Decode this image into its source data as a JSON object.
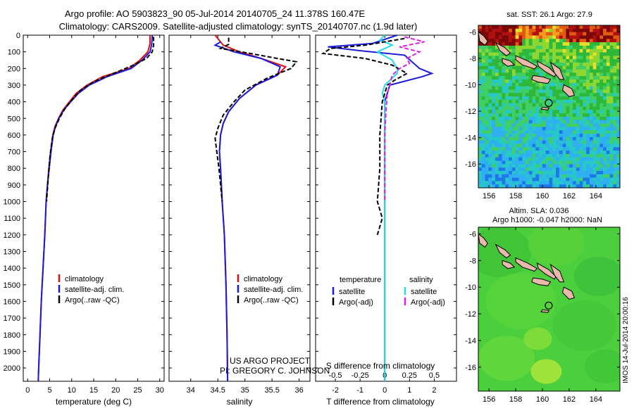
{
  "title": {
    "line1": "Argo profile: AO 5903823_90 05-Jul-2014 20140705_24 11.378S 160.47E",
    "line2": "Climatology: CARS2009. Satellite-adjusted climatology: synTS_20140707.nc (1.9d later)"
  },
  "credit": {
    "line1": "US ARGO PROJECT",
    "line2": "PI: GREGORY C. JOHNSON"
  },
  "side_stamp": "IMOS 14-Jul-2014 20:00:16",
  "colors": {
    "climatology": "#dd1111",
    "satellite": "#1a1adb",
    "argo": "#000000",
    "salinity_satellite": "#22dde8",
    "salinity_argo": "#e020e0"
  },
  "chart_data": [
    {
      "id": "temperature",
      "type": "line",
      "xlabel": "temperature (deg C)",
      "xlim": [
        -1,
        31
      ],
      "xticks": [
        0,
        5,
        10,
        15,
        20,
        25,
        30
      ],
      "ylim": [
        2080,
        0
      ],
      "yticks": [
        0,
        100,
        200,
        300,
        400,
        500,
        600,
        700,
        800,
        900,
        1000,
        1100,
        1200,
        1300,
        1400,
        1500,
        1600,
        1700,
        1800,
        1900,
        2000
      ],
      "legend": [
        "climatology",
        "satellite-adj. clim.",
        "Argo(..raw -QC)"
      ],
      "series": [
        {
          "name": "climatology",
          "style": "solid",
          "color": "#dd1111",
          "points": [
            [
              27.8,
              0
            ],
            [
              27.8,
              50
            ],
            [
              27.3,
              100
            ],
            [
              25.5,
              150
            ],
            [
              23,
              200
            ],
            [
              17,
              250
            ],
            [
              13.5,
              300
            ],
            [
              11,
              350
            ],
            [
              9.5,
              400
            ],
            [
              8,
              450
            ],
            [
              7,
              500
            ],
            [
              6.2,
              550
            ],
            [
              5.7,
              600
            ],
            [
              5.2,
              700
            ],
            [
              4.8,
              800
            ],
            [
              4.5,
              900
            ],
            [
              4.2,
              1000
            ],
            [
              3.9,
              1200
            ],
            [
              3.5,
              1400
            ],
            [
              3.1,
              1600
            ],
            [
              2.8,
              1800
            ],
            [
              2.5,
              2000
            ],
            [
              2.4,
              2080
            ]
          ]
        },
        {
          "name": "satellite-adj. clim.",
          "style": "solid",
          "color": "#1a1adb",
          "points": [
            [
              28.3,
              0
            ],
            [
              28.2,
              50
            ],
            [
              27.8,
              100
            ],
            [
              26,
              150
            ],
            [
              23.5,
              200
            ],
            [
              18,
              250
            ],
            [
              14,
              300
            ],
            [
              11.5,
              350
            ],
            [
              9.8,
              400
            ],
            [
              8.2,
              450
            ],
            [
              7.1,
              500
            ],
            [
              6.3,
              550
            ],
            [
              5.8,
              600
            ],
            [
              5.3,
              700
            ],
            [
              4.9,
              800
            ],
            [
              4.5,
              900
            ],
            [
              4.2,
              1000
            ],
            [
              3.9,
              1200
            ],
            [
              3.5,
              1400
            ],
            [
              3.1,
              1600
            ],
            [
              2.8,
              1800
            ],
            [
              2.5,
              2000
            ],
            [
              2.4,
              2080
            ]
          ]
        },
        {
          "name": "Argo(..raw -QC)",
          "style": "dashed",
          "color": "#000000",
          "points": [
            [
              28.6,
              10
            ],
            [
              28.6,
              60
            ],
            [
              28.3,
              100
            ],
            [
              27,
              140
            ],
            [
              24,
              180
            ],
            [
              19.5,
              230
            ],
            [
              15,
              280
            ],
            [
              12,
              330
            ],
            [
              10,
              390
            ],
            [
              8.5,
              440
            ],
            [
              7.2,
              500
            ],
            [
              6.2,
              560
            ],
            [
              5.6,
              620
            ],
            [
              5.1,
              720
            ],
            [
              4.7,
              850
            ],
            [
              4.3,
              1000
            ]
          ]
        }
      ]
    },
    {
      "id": "salinity",
      "type": "line",
      "xlabel": "salinity",
      "xlim": [
        33.6,
        36.2
      ],
      "xticks": [
        34,
        34.5,
        35,
        35.5,
        36
      ],
      "ylim": [
        2080,
        0
      ],
      "legend": [
        "climatology",
        "satellite-adj. clim.",
        "Argo(..raw -QC)"
      ],
      "series": [
        {
          "name": "climatology",
          "style": "solid",
          "color": "#dd1111",
          "points": [
            [
              34.45,
              0
            ],
            [
              34.6,
              60
            ],
            [
              34.9,
              100
            ],
            [
              35.3,
              140
            ],
            [
              35.75,
              190
            ],
            [
              35.6,
              240
            ],
            [
              35.2,
              300
            ],
            [
              34.9,
              380
            ],
            [
              34.7,
              460
            ],
            [
              34.6,
              530
            ],
            [
              34.55,
              600
            ],
            [
              34.53,
              700
            ],
            [
              34.55,
              800
            ],
            [
              34.58,
              1000
            ],
            [
              34.62,
              1200
            ],
            [
              34.65,
              1500
            ],
            [
              34.67,
              1800
            ],
            [
              34.68,
              2080
            ]
          ]
        },
        {
          "name": "satellite-adj. clim.",
          "style": "solid",
          "color": "#1a1adb",
          "points": [
            [
              34.55,
              40
            ],
            [
              34.45,
              60
            ],
            [
              34.8,
              100
            ],
            [
              35.3,
              140
            ],
            [
              35.65,
              190
            ],
            [
              35.6,
              240
            ],
            [
              35.2,
              300
            ],
            [
              34.9,
              380
            ],
            [
              34.7,
              460
            ],
            [
              34.6,
              530
            ],
            [
              34.55,
              600
            ],
            [
              34.53,
              700
            ],
            [
              34.55,
              800
            ],
            [
              34.58,
              1000
            ],
            [
              34.62,
              1200
            ],
            [
              34.65,
              1500
            ],
            [
              34.67,
              1800
            ],
            [
              34.68,
              2080
            ]
          ]
        },
        {
          "name": "Argo(..raw -QC)",
          "style": "dashed",
          "color": "#000000",
          "points": [
            [
              34.7,
              15
            ],
            [
              34.7,
              55
            ],
            [
              34.55,
              80
            ],
            [
              35.1,
              110
            ],
            [
              35.6,
              140
            ],
            [
              35.95,
              160
            ],
            [
              35.85,
              200
            ],
            [
              35.4,
              260
            ],
            [
              35.0,
              330
            ],
            [
              34.8,
              400
            ],
            [
              34.6,
              480
            ],
            [
              34.5,
              560
            ],
            [
              34.45,
              620
            ],
            [
              34.48,
              700
            ],
            [
              34.52,
              800
            ],
            [
              34.58,
              1000
            ]
          ]
        }
      ]
    },
    {
      "id": "difference",
      "type": "line",
      "xlabel": "T difference from climatology",
      "xlabel_top": "S difference from climatology",
      "xlim": [
        -2.8,
        2.9
      ],
      "xticks": [
        -2,
        -1,
        0,
        1,
        2
      ],
      "xticks_top": [
        -0.5,
        -0.25,
        0,
        0.25,
        0.5
      ],
      "ylim": [
        2080,
        0
      ],
      "legend_headers": [
        "temperature",
        "salinity"
      ],
      "legend": [
        "satellite",
        "Argo(-adj)",
        "satellite",
        "Argo(-adj)"
      ],
      "series": [
        {
          "name": "T satellite",
          "style": "solid",
          "color": "#1a1adb",
          "points": [
            [
              0.5,
              0
            ],
            [
              -0.5,
              50
            ],
            [
              -2.3,
              70
            ],
            [
              -1.2,
              90
            ],
            [
              0.8,
              120
            ],
            [
              1.4,
              200
            ],
            [
              1.9,
              230
            ],
            [
              1.5,
              250
            ],
            [
              0.2,
              300
            ],
            [
              0.1,
              350
            ],
            [
              0,
              400
            ],
            [
              0,
              450
            ],
            [
              0,
              2080
            ]
          ]
        },
        {
          "name": "S satellite",
          "style": "solid",
          "color": "#22dde8",
          "points": [
            [
              0,
              0
            ],
            [
              -0.2,
              30
            ],
            [
              0.3,
              60
            ],
            [
              -0.3,
              100
            ],
            [
              0.3,
              150
            ],
            [
              0.5,
              200
            ],
            [
              0.5,
              230
            ],
            [
              0,
              300
            ],
            [
              -0.1,
              350
            ],
            [
              0,
              400
            ],
            [
              0,
              2080
            ]
          ]
        },
        {
          "name": "T Argo(-adj)",
          "style": "dashed",
          "color": "#000000",
          "points": [
            [
              0.8,
              20
            ],
            [
              -0.8,
              60
            ],
            [
              -2.2,
              80
            ],
            [
              -2.5,
              110
            ],
            [
              -0.8,
              140
            ],
            [
              0.3,
              180
            ],
            [
              0.9,
              230
            ],
            [
              0.4,
              270
            ],
            [
              0.1,
              300
            ],
            [
              0,
              350
            ],
            [
              -0.1,
              400
            ],
            [
              -0.2,
              600
            ],
            [
              -0.2,
              800
            ],
            [
              -0.3,
              1000
            ],
            [
              -0.1,
              1100
            ],
            [
              -0.3,
              1200
            ]
          ]
        },
        {
          "name": "S Argo(-adj)",
          "style": "dashed",
          "color": "#e020e0",
          "points": [
            [
              0.8,
              10
            ],
            [
              1.6,
              40
            ],
            [
              0.6,
              70
            ],
            [
              1.4,
              100
            ],
            [
              0.9,
              140
            ],
            [
              1.0,
              170
            ],
            [
              0.6,
              200
            ],
            [
              0.3,
              240
            ],
            [
              0.2,
              300
            ],
            [
              0.1,
              350
            ],
            [
              0.05,
              450
            ],
            [
              0,
              600
            ],
            [
              0,
              800
            ],
            [
              0,
              1000
            ]
          ]
        }
      ]
    },
    {
      "id": "sst_map",
      "type": "heatmap",
      "title": "sat. SST: 26.1 Argo: 27.9",
      "xlim": [
        155.2,
        165.8
      ],
      "ylim": [
        -17.8,
        -5.5
      ],
      "xticks": [
        156,
        158,
        160,
        162,
        164
      ],
      "yticks": [
        -6,
        -8,
        -10,
        -12,
        -14,
        -16
      ],
      "float_position": [
        160.47,
        -11.378
      ]
    },
    {
      "id": "sla_map",
      "type": "heatmap",
      "title_line1": "Altim. SLA: 0.036",
      "title_line2": "Argo h1000: -0.047 h2000: NaN",
      "xlim": [
        155.2,
        165.8
      ],
      "ylim": [
        -17.8,
        -5.5
      ],
      "xticks": [
        156,
        158,
        160,
        162,
        164
      ],
      "yticks": [
        -6,
        -8,
        -10,
        -12,
        -14,
        -16
      ],
      "float_position": [
        160.47,
        -11.378
      ]
    }
  ]
}
